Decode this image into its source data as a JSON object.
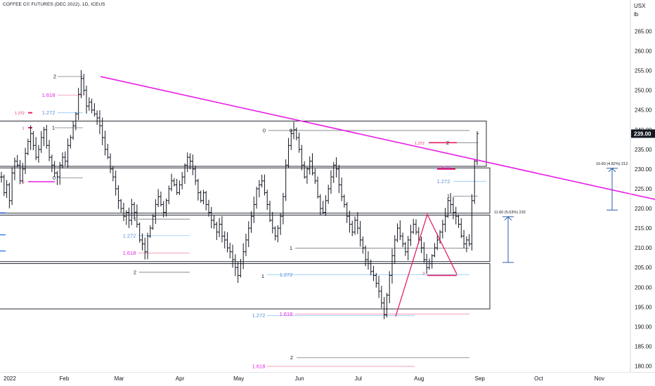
{
  "chart_data": {
    "type": "bar",
    "title": "COFFEE C© FUTURES (DEC 2022), 1D, ICEUS",
    "unit_lines": [
      "USX",
      "lb"
    ],
    "y_ticks": [
      "265.00",
      "260.00",
      "255.00",
      "250.00",
      "245.00",
      "240.00",
      "235.00",
      "230.00",
      "225.00",
      "220.00",
      "215.00",
      "210.00",
      "205.00",
      "200.00",
      "195.00",
      "190.00",
      "185.00",
      "180.00"
    ],
    "ylim": [
      179,
      268
    ],
    "x_ticks": [
      {
        "label": "2022",
        "day": 0
      },
      {
        "label": "Feb",
        "day": 31
      },
      {
        "label": "Mar",
        "day": 59
      },
      {
        "label": "Apr",
        "day": 90
      },
      {
        "label": "May",
        "day": 120
      },
      {
        "label": "Jun",
        "day": 151
      },
      {
        "label": "Jul",
        "day": 181
      },
      {
        "label": "Aug",
        "day": 212
      },
      {
        "label": "Sep",
        "day": 243
      },
      {
        "label": "Oct",
        "day": 273
      },
      {
        "label": "Nov",
        "day": 304
      }
    ],
    "last_price": "239.00",
    "last_price_value": 239,
    "closes": [
      228,
      224,
      226,
      222,
      229,
      232,
      231,
      227,
      230,
      234,
      237,
      239,
      236,
      233,
      235,
      238,
      240,
      236,
      233,
      231,
      229,
      228,
      231,
      233,
      232,
      236,
      238,
      241,
      244,
      249,
      253,
      250,
      246,
      247,
      245,
      244,
      243,
      241,
      238,
      235,
      233,
      230,
      228,
      225,
      222,
      220,
      218,
      219,
      217,
      221,
      219,
      216,
      212,
      211,
      209,
      213,
      215,
      218,
      221,
      223,
      221,
      219,
      222,
      225,
      227,
      226,
      224,
      226,
      228,
      231,
      233,
      232,
      230,
      227,
      224,
      222,
      224,
      221,
      219,
      217,
      216,
      214,
      216,
      213,
      212,
      210,
      209,
      207,
      205,
      203,
      206,
      209,
      212,
      215,
      218,
      221,
      225,
      226,
      227,
      224,
      221,
      217,
      215,
      213,
      215,
      218,
      223,
      231,
      236,
      239,
      240,
      238,
      235,
      231,
      228,
      230,
      232,
      229,
      227,
      223,
      220,
      219,
      222,
      225,
      228,
      231,
      230,
      226,
      223,
      221,
      218,
      216,
      214,
      217,
      215,
      212,
      210,
      207,
      206,
      204,
      203,
      201,
      199,
      196,
      193,
      198,
      203,
      208,
      212,
      215,
      213,
      211,
      209,
      212,
      214,
      216,
      214,
      212,
      210,
      207,
      205,
      206,
      208,
      210,
      212,
      214,
      216,
      218,
      222,
      221,
      219,
      218,
      216,
      213,
      211,
      212,
      211,
      222,
      232,
      239
    ],
    "annotations": [
      {
        "text": "2",
        "color": "#131722",
        "x": 78,
        "y": 253.5
      },
      {
        "text": "1.618",
        "color": "#e91ee6",
        "x": 69,
        "y": 248.8
      },
      {
        "text": "1.272",
        "color": "#5b8fd6",
        "x": 69,
        "y": 244.3
      },
      {
        "text": "1.272",
        "color": "#e91e63",
        "x": 28,
        "y": 244.3
      },
      {
        "text": "1",
        "color": "#e91e63",
        "x": 33,
        "y": 240.5
      },
      {
        "text": "1",
        "color": "#131722",
        "x": 76,
        "y": 240.5
      },
      {
        "text": "0",
        "color": "#131722",
        "x": 77,
        "y": 227.8
      },
      {
        "text": "0",
        "color": "#e91e63",
        "x": 33,
        "y": 226.8
      },
      {
        "text": "0",
        "color": "#131722",
        "x": 376,
        "y": 239.8
      },
      {
        "text": "0",
        "color": "#131722",
        "x": 414,
        "y": 239.8
      },
      {
        "text": "1.272",
        "color": "#e91e63",
        "x": 597,
        "y": 236.7
      },
      {
        "text": "2",
        "color": "#131722",
        "x": 637,
        "y": 236.7
      },
      {
        "text": "1.618",
        "color": "#e91ee6",
        "x": 631,
        "y": 230.3
      },
      {
        "text": "1.272",
        "color": "#5b8fd6",
        "x": 631,
        "y": 226.9
      },
      {
        "text": "1",
        "color": "#131722",
        "x": 638,
        "y": 223.1
      },
      {
        "text": "1",
        "color": "#131722",
        "x": 192,
        "y": 217.3
      },
      {
        "text": "1.272",
        "color": "#5b8fd6",
        "x": 184,
        "y": 213.1
      },
      {
        "text": "1.618",
        "color": "#e91ee6",
        "x": 184,
        "y": 208.7
      },
      {
        "text": "1",
        "color": "#131722",
        "x": 414,
        "y": 209.9
      },
      {
        "text": "2",
        "color": "#131722",
        "x": 192,
        "y": 203.8
      },
      {
        "text": "1",
        "color": "#131722",
        "x": 374,
        "y": 202.8
      },
      {
        "text": "1.272",
        "color": "#5b8fd6",
        "x": 407,
        "y": 203.2
      },
      {
        "text": "0",
        "color": "#e91e63",
        "x": 603,
        "y": 203.6
      },
      {
        "text": "1.618",
        "color": "#e91ee6",
        "x": 407,
        "y": 193.2
      },
      {
        "text": "1.272",
        "color": "#5b8fd6",
        "x": 368,
        "y": 192.8
      },
      {
        "text": "2",
        "color": "#131722",
        "x": 415,
        "y": 182.1
      },
      {
        "text": "1.618",
        "color": "#e91ee6",
        "x": 368,
        "y": 179.9
      }
    ],
    "measures": [
      {
        "label": "10.60 (4.82%) 212",
        "from": 219.6,
        "to": 230.2
      },
      {
        "label": "11.60 (5.63%) 232",
        "from": 206.3,
        "to": 217.9
      }
    ],
    "trendline": {
      "from": 253.5,
      "to": 222.3
    }
  }
}
